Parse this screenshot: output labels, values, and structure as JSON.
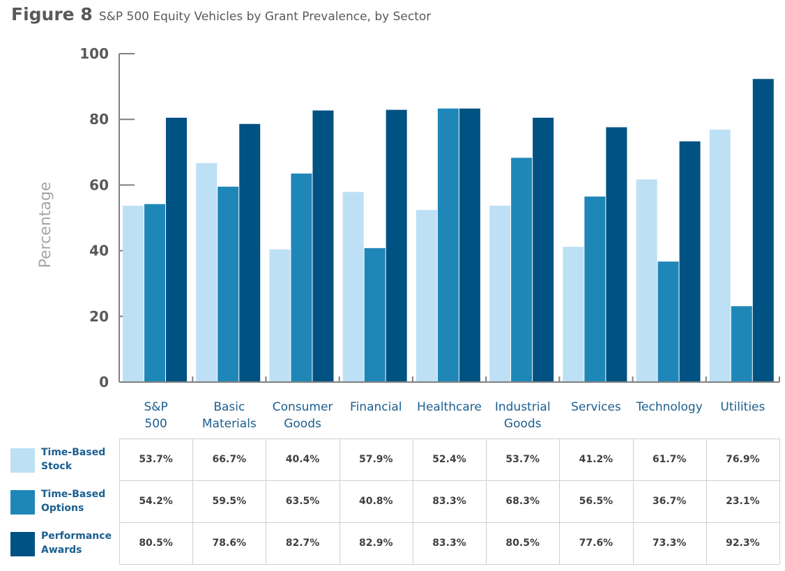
{
  "figure_label": "Figure 8",
  "figure_title": "S&P 500 Equity Vehicles by Grant Prevalence, by Sector",
  "colors": {
    "time_based_stock": "#bde0f5",
    "time_based_options": "#1f87b8",
    "performance_awards": "#005282",
    "axis": "#7f7f7f",
    "category_text": "#1b5e8f"
  },
  "chart_data": {
    "type": "bar",
    "ylabel": "Percentage",
    "ylim": [
      0,
      100
    ],
    "yticks": [
      "0",
      "20",
      "40",
      "60",
      "80",
      "100"
    ],
    "grid": false,
    "categories": [
      [
        "S&P",
        "500"
      ],
      [
        "Basic",
        "Materials"
      ],
      [
        "Consumer",
        "Goods"
      ],
      [
        "Financial"
      ],
      [
        "Healthcare"
      ],
      [
        "Industrial",
        "Goods"
      ],
      [
        "Services"
      ],
      [
        "Technology"
      ],
      [
        "Utilities"
      ]
    ],
    "series": [
      {
        "name": [
          "Time-Based",
          "Stock"
        ],
        "values": [
          53.7,
          66.7,
          40.4,
          57.9,
          52.4,
          53.7,
          41.2,
          61.7,
          76.9
        ],
        "labels": [
          "53.7%",
          "66.7%",
          "40.4%",
          "57.9%",
          "52.4%",
          "53.7%",
          "41.2%",
          "61.7%",
          "76.9%"
        ]
      },
      {
        "name": [
          "Time-Based",
          "Options"
        ],
        "values": [
          54.2,
          59.5,
          63.5,
          40.8,
          83.3,
          68.3,
          56.5,
          36.7,
          23.1
        ],
        "labels": [
          "54.2%",
          "59.5%",
          "63.5%",
          "40.8%",
          "83.3%",
          "68.3%",
          "56.5%",
          "36.7%",
          "23.1%"
        ]
      },
      {
        "name": [
          "Performance",
          "Awards"
        ],
        "values": [
          80.5,
          78.6,
          82.7,
          82.9,
          83.3,
          80.5,
          77.6,
          73.3,
          92.3
        ],
        "labels": [
          "80.5%",
          "78.6%",
          "82.7%",
          "82.9%",
          "83.3%",
          "80.5%",
          "77.6%",
          "73.3%",
          "92.3%"
        ]
      }
    ]
  }
}
